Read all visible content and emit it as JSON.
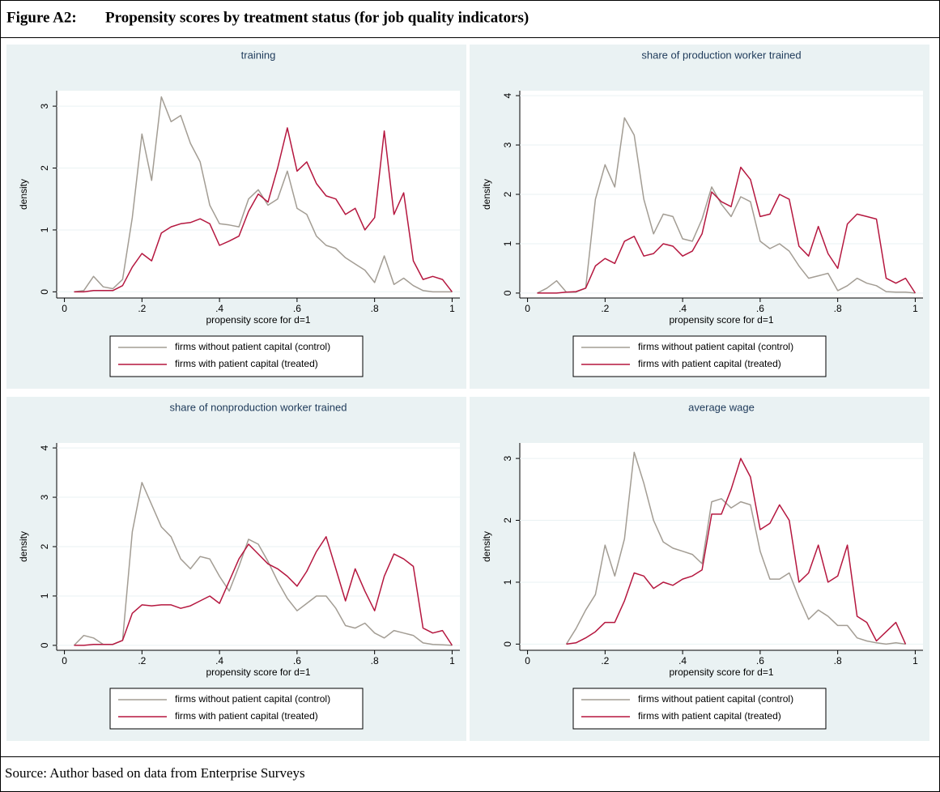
{
  "figure": {
    "label": "Figure A2:",
    "title": "Propensity scores by treatment status (for job quality indicators)"
  },
  "source": "Source: Author based on data from Enterprise Surveys",
  "chart_data": [
    {
      "type": "line",
      "title": "training",
      "x_label": "propensity score for d=1",
      "y_label": "density",
      "x": [
        0.025,
        0.05,
        0.075,
        0.1,
        0.125,
        0.15,
        0.175,
        0.2,
        0.225,
        0.25,
        0.275,
        0.3,
        0.325,
        0.35,
        0.375,
        0.4,
        0.425,
        0.45,
        0.475,
        0.5,
        0.525,
        0.55,
        0.575,
        0.6,
        0.625,
        0.65,
        0.675,
        0.7,
        0.725,
        0.75,
        0.775,
        0.8,
        0.825,
        0.85,
        0.875,
        0.9,
        0.925,
        0.95,
        0.975,
        1.0
      ],
      "series": [
        {
          "name": "firms without patient capital (control)",
          "color": "#a39d94",
          "values": [
            0,
            0.02,
            0.25,
            0.08,
            0.05,
            0.2,
            1.2,
            2.55,
            1.8,
            3.15,
            2.75,
            2.85,
            2.4,
            2.1,
            1.4,
            1.1,
            1.08,
            1.05,
            1.5,
            1.65,
            1.4,
            1.5,
            1.95,
            1.35,
            1.25,
            0.9,
            0.75,
            0.7,
            0.55,
            0.45,
            0.35,
            0.15,
            0.58,
            0.12,
            0.22,
            0.1,
            0.02,
            0,
            0,
            0
          ]
        },
        {
          "name": "firms with patient capital (treated)",
          "color": "#b5173f",
          "values": [
            0,
            0,
            0.02,
            0.02,
            0.02,
            0.1,
            0.4,
            0.62,
            0.5,
            0.95,
            1.05,
            1.1,
            1.12,
            1.18,
            1.1,
            0.75,
            0.82,
            0.9,
            1.3,
            1.58,
            1.45,
            2.0,
            2.65,
            1.95,
            2.1,
            1.75,
            1.55,
            1.5,
            1.25,
            1.35,
            1.0,
            1.2,
            2.6,
            1.25,
            1.6,
            0.5,
            0.2,
            0.25,
            0.2,
            0
          ]
        }
      ],
      "xlim": [
        -0.02,
        1.02
      ],
      "xticks": [
        0,
        {
          "value": 0.2,
          "label": ".2"
        },
        {
          "value": 0.4,
          "label": ".4"
        },
        {
          "value": 0.6,
          "label": ".6"
        },
        {
          "value": 0.8,
          "label": ".8"
        },
        1
      ],
      "ylim": [
        -0.1,
        3.25
      ],
      "yticks": [
        0,
        1,
        2,
        3
      ],
      "grid": true
    },
    {
      "type": "line",
      "title": "share of production worker trained",
      "x_label": "propensity score for d=1",
      "y_label": "density",
      "x": [
        0.025,
        0.05,
        0.075,
        0.1,
        0.125,
        0.15,
        0.175,
        0.2,
        0.225,
        0.25,
        0.275,
        0.3,
        0.325,
        0.35,
        0.375,
        0.4,
        0.425,
        0.45,
        0.475,
        0.5,
        0.525,
        0.55,
        0.575,
        0.6,
        0.625,
        0.65,
        0.675,
        0.7,
        0.725,
        0.75,
        0.775,
        0.8,
        0.825,
        0.85,
        0.875,
        0.9,
        0.925,
        0.95,
        0.975,
        1.0
      ],
      "series": [
        {
          "name": "firms without patient capital (control)",
          "color": "#a39d94",
          "values": [
            0,
            0.1,
            0.25,
            0.02,
            0.02,
            0.1,
            1.9,
            2.6,
            2.15,
            3.55,
            3.2,
            1.9,
            1.2,
            1.6,
            1.55,
            1.1,
            1.05,
            1.5,
            2.15,
            1.8,
            1.55,
            1.95,
            1.85,
            1.05,
            0.9,
            1.0,
            0.85,
            0.55,
            0.3,
            0.35,
            0.4,
            0.05,
            0.15,
            0.3,
            0.2,
            0.15,
            0.03,
            0.02,
            0.02,
            0
          ]
        },
        {
          "name": "firms with patient capital (treated)",
          "color": "#b5173f",
          "values": [
            0,
            0,
            0,
            0.02,
            0.03,
            0.1,
            0.55,
            0.7,
            0.6,
            1.05,
            1.15,
            0.75,
            0.8,
            1.0,
            0.95,
            0.75,
            0.85,
            1.2,
            2.05,
            1.85,
            1.75,
            2.55,
            2.3,
            1.55,
            1.6,
            2.0,
            1.9,
            0.95,
            0.75,
            1.35,
            0.8,
            0.5,
            1.4,
            1.6,
            1.55,
            1.5,
            0.3,
            0.2,
            0.3,
            0
          ]
        }
      ],
      "xlim": [
        -0.02,
        1.02
      ],
      "xticks": [
        0,
        {
          "value": 0.2,
          "label": ".2"
        },
        {
          "value": 0.4,
          "label": ".4"
        },
        {
          "value": 0.6,
          "label": ".6"
        },
        {
          "value": 0.8,
          "label": ".8"
        },
        1
      ],
      "ylim": [
        -0.1,
        4.1
      ],
      "yticks": [
        0,
        1,
        2,
        3,
        4
      ],
      "grid": true
    },
    {
      "type": "line",
      "title": "share of nonproduction worker trained",
      "x_label": "propensity score for d=1",
      "y_label": "density",
      "x": [
        0.025,
        0.05,
        0.075,
        0.1,
        0.125,
        0.15,
        0.175,
        0.2,
        0.225,
        0.25,
        0.275,
        0.3,
        0.325,
        0.35,
        0.375,
        0.4,
        0.425,
        0.45,
        0.475,
        0.5,
        0.525,
        0.55,
        0.575,
        0.6,
        0.625,
        0.65,
        0.675,
        0.7,
        0.725,
        0.75,
        0.775,
        0.8,
        0.825,
        0.85,
        0.875,
        0.9,
        0.925,
        0.95,
        0.975,
        1.0
      ],
      "series": [
        {
          "name": "firms without patient capital (control)",
          "color": "#a39d94",
          "values": [
            0,
            0.2,
            0.15,
            0.02,
            0.02,
            0.1,
            2.3,
            3.3,
            2.85,
            2.4,
            2.2,
            1.75,
            1.55,
            1.8,
            1.75,
            1.4,
            1.1,
            1.6,
            2.15,
            2.05,
            1.7,
            1.3,
            0.95,
            0.7,
            0.85,
            1.0,
            1.0,
            0.75,
            0.4,
            0.35,
            0.45,
            0.25,
            0.15,
            0.3,
            0.25,
            0.2,
            0.05,
            0.02,
            0.01,
            0
          ]
        },
        {
          "name": "firms with patient capital (treated)",
          "color": "#b5173f",
          "values": [
            0,
            0,
            0.02,
            0.02,
            0.02,
            0.1,
            0.65,
            0.82,
            0.8,
            0.82,
            0.82,
            0.75,
            0.8,
            0.9,
            1.0,
            0.85,
            1.3,
            1.75,
            2.05,
            1.85,
            1.65,
            1.55,
            1.4,
            1.2,
            1.5,
            1.9,
            2.2,
            1.55,
            0.9,
            1.55,
            1.1,
            0.7,
            1.4,
            1.85,
            1.75,
            1.6,
            0.35,
            0.25,
            0.3,
            0
          ]
        }
      ],
      "xlim": [
        -0.02,
        1.02
      ],
      "xticks": [
        0,
        {
          "value": 0.2,
          "label": ".2"
        },
        {
          "value": 0.4,
          "label": ".4"
        },
        {
          "value": 0.6,
          "label": ".6"
        },
        {
          "value": 0.8,
          "label": ".8"
        },
        1
      ],
      "ylim": [
        -0.1,
        4.1
      ],
      "yticks": [
        0,
        1,
        2,
        3,
        4
      ],
      "grid": true
    },
    {
      "type": "line",
      "title": "average wage",
      "x_label": "propensity score for d=1",
      "y_label": "density",
      "x": [
        0.1,
        0.125,
        0.15,
        0.175,
        0.2,
        0.225,
        0.25,
        0.275,
        0.3,
        0.325,
        0.35,
        0.375,
        0.4,
        0.425,
        0.45,
        0.475,
        0.5,
        0.525,
        0.55,
        0.575,
        0.6,
        0.625,
        0.65,
        0.675,
        0.7,
        0.725,
        0.75,
        0.775,
        0.8,
        0.825,
        0.85,
        0.875,
        0.9,
        0.925,
        0.95,
        0.975
      ],
      "series": [
        {
          "name": "firms without patient capital (control)",
          "color": "#a39d94",
          "values": [
            0,
            0.25,
            0.55,
            0.8,
            1.6,
            1.1,
            1.7,
            3.1,
            2.6,
            2.0,
            1.65,
            1.55,
            1.5,
            1.45,
            1.3,
            2.3,
            2.35,
            2.2,
            2.3,
            2.25,
            1.5,
            1.05,
            1.05,
            1.15,
            0.75,
            0.4,
            0.55,
            0.45,
            0.3,
            0.3,
            0.1,
            0.05,
            0.02,
            0,
            0.02,
            0
          ]
        },
        {
          "name": "firms with patient capital (treated)",
          "color": "#b5173f",
          "values": [
            0,
            0.02,
            0.1,
            0.2,
            0.35,
            0.35,
            0.7,
            1.15,
            1.1,
            0.9,
            1.0,
            0.95,
            1.05,
            1.1,
            1.2,
            2.1,
            2.1,
            2.5,
            3.0,
            2.7,
            1.85,
            1.95,
            2.25,
            2.0,
            1.0,
            1.15,
            1.6,
            1.0,
            1.1,
            1.6,
            0.45,
            0.35,
            0.05,
            0.2,
            0.35,
            0
          ]
        }
      ],
      "xlim": [
        -0.02,
        1.02
      ],
      "xticks": [
        0,
        {
          "value": 0.2,
          "label": ".2"
        },
        {
          "value": 0.4,
          "label": ".4"
        },
        {
          "value": 0.6,
          "label": ".6"
        },
        {
          "value": 0.8,
          "label": ".8"
        },
        1
      ],
      "ylim": [
        -0.1,
        3.25
      ],
      "yticks": [
        0,
        1,
        2,
        3
      ],
      "grid": true
    }
  ]
}
